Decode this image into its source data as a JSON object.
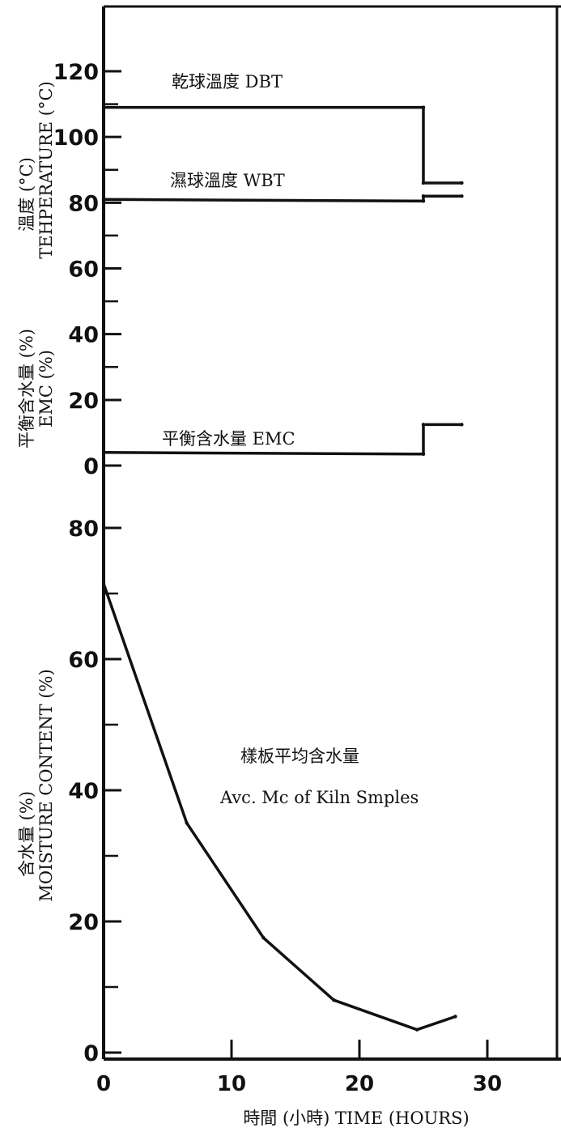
{
  "chart_data": [
    {
      "type": "line",
      "panel": "temperature",
      "ylabel": "溫度 (°C)",
      "ylabel2": "TEHPERATURE (°C)",
      "ylim": [
        0,
        130
      ],
      "yticks": [
        0,
        20,
        40,
        60,
        80,
        100,
        120
      ],
      "xlim": [
        0,
        35
      ],
      "series": [
        {
          "name": "乾球溫度 DBT",
          "x": [
            0,
            25,
            25,
            28
          ],
          "y": [
            109,
            109,
            86,
            86
          ]
        },
        {
          "name": "濕球溫度 WBT",
          "x": [
            0,
            25,
            25,
            28
          ],
          "y": [
            81,
            80.5,
            82,
            82
          ]
        }
      ]
    },
    {
      "type": "line",
      "panel": "emc",
      "ylabel": "平衡含水量 (%)",
      "ylabel2": "EMC (%)",
      "ylim": [
        0,
        20
      ],
      "yticks": [
        0,
        20
      ],
      "series": [
        {
          "name": "平衡含水量 EMC",
          "x": [
            0,
            25,
            25,
            28
          ],
          "y": [
            4,
            3.5,
            12.5,
            12.5
          ]
        }
      ]
    },
    {
      "type": "line",
      "panel": "moisture",
      "ylabel": "含水量 (%)",
      "ylabel2": "MOISTURE CONTENT (%)",
      "ylim": [
        0,
        80
      ],
      "yticks": [
        0,
        20,
        40,
        60,
        80
      ],
      "xlabel": "時間 (小時) TIME (HOURS)",
      "xticks": [
        0,
        10,
        20,
        30
      ],
      "xlim": [
        0,
        35
      ],
      "series": [
        {
          "name": "樣板平均含水量",
          "name2": "Avc. Mc of Kiln Smples",
          "x": [
            0,
            6.5,
            12.5,
            18,
            24.5,
            27.5
          ],
          "y": [
            71.5,
            35,
            17.5,
            8,
            3.5,
            5.5
          ]
        }
      ]
    }
  ]
}
